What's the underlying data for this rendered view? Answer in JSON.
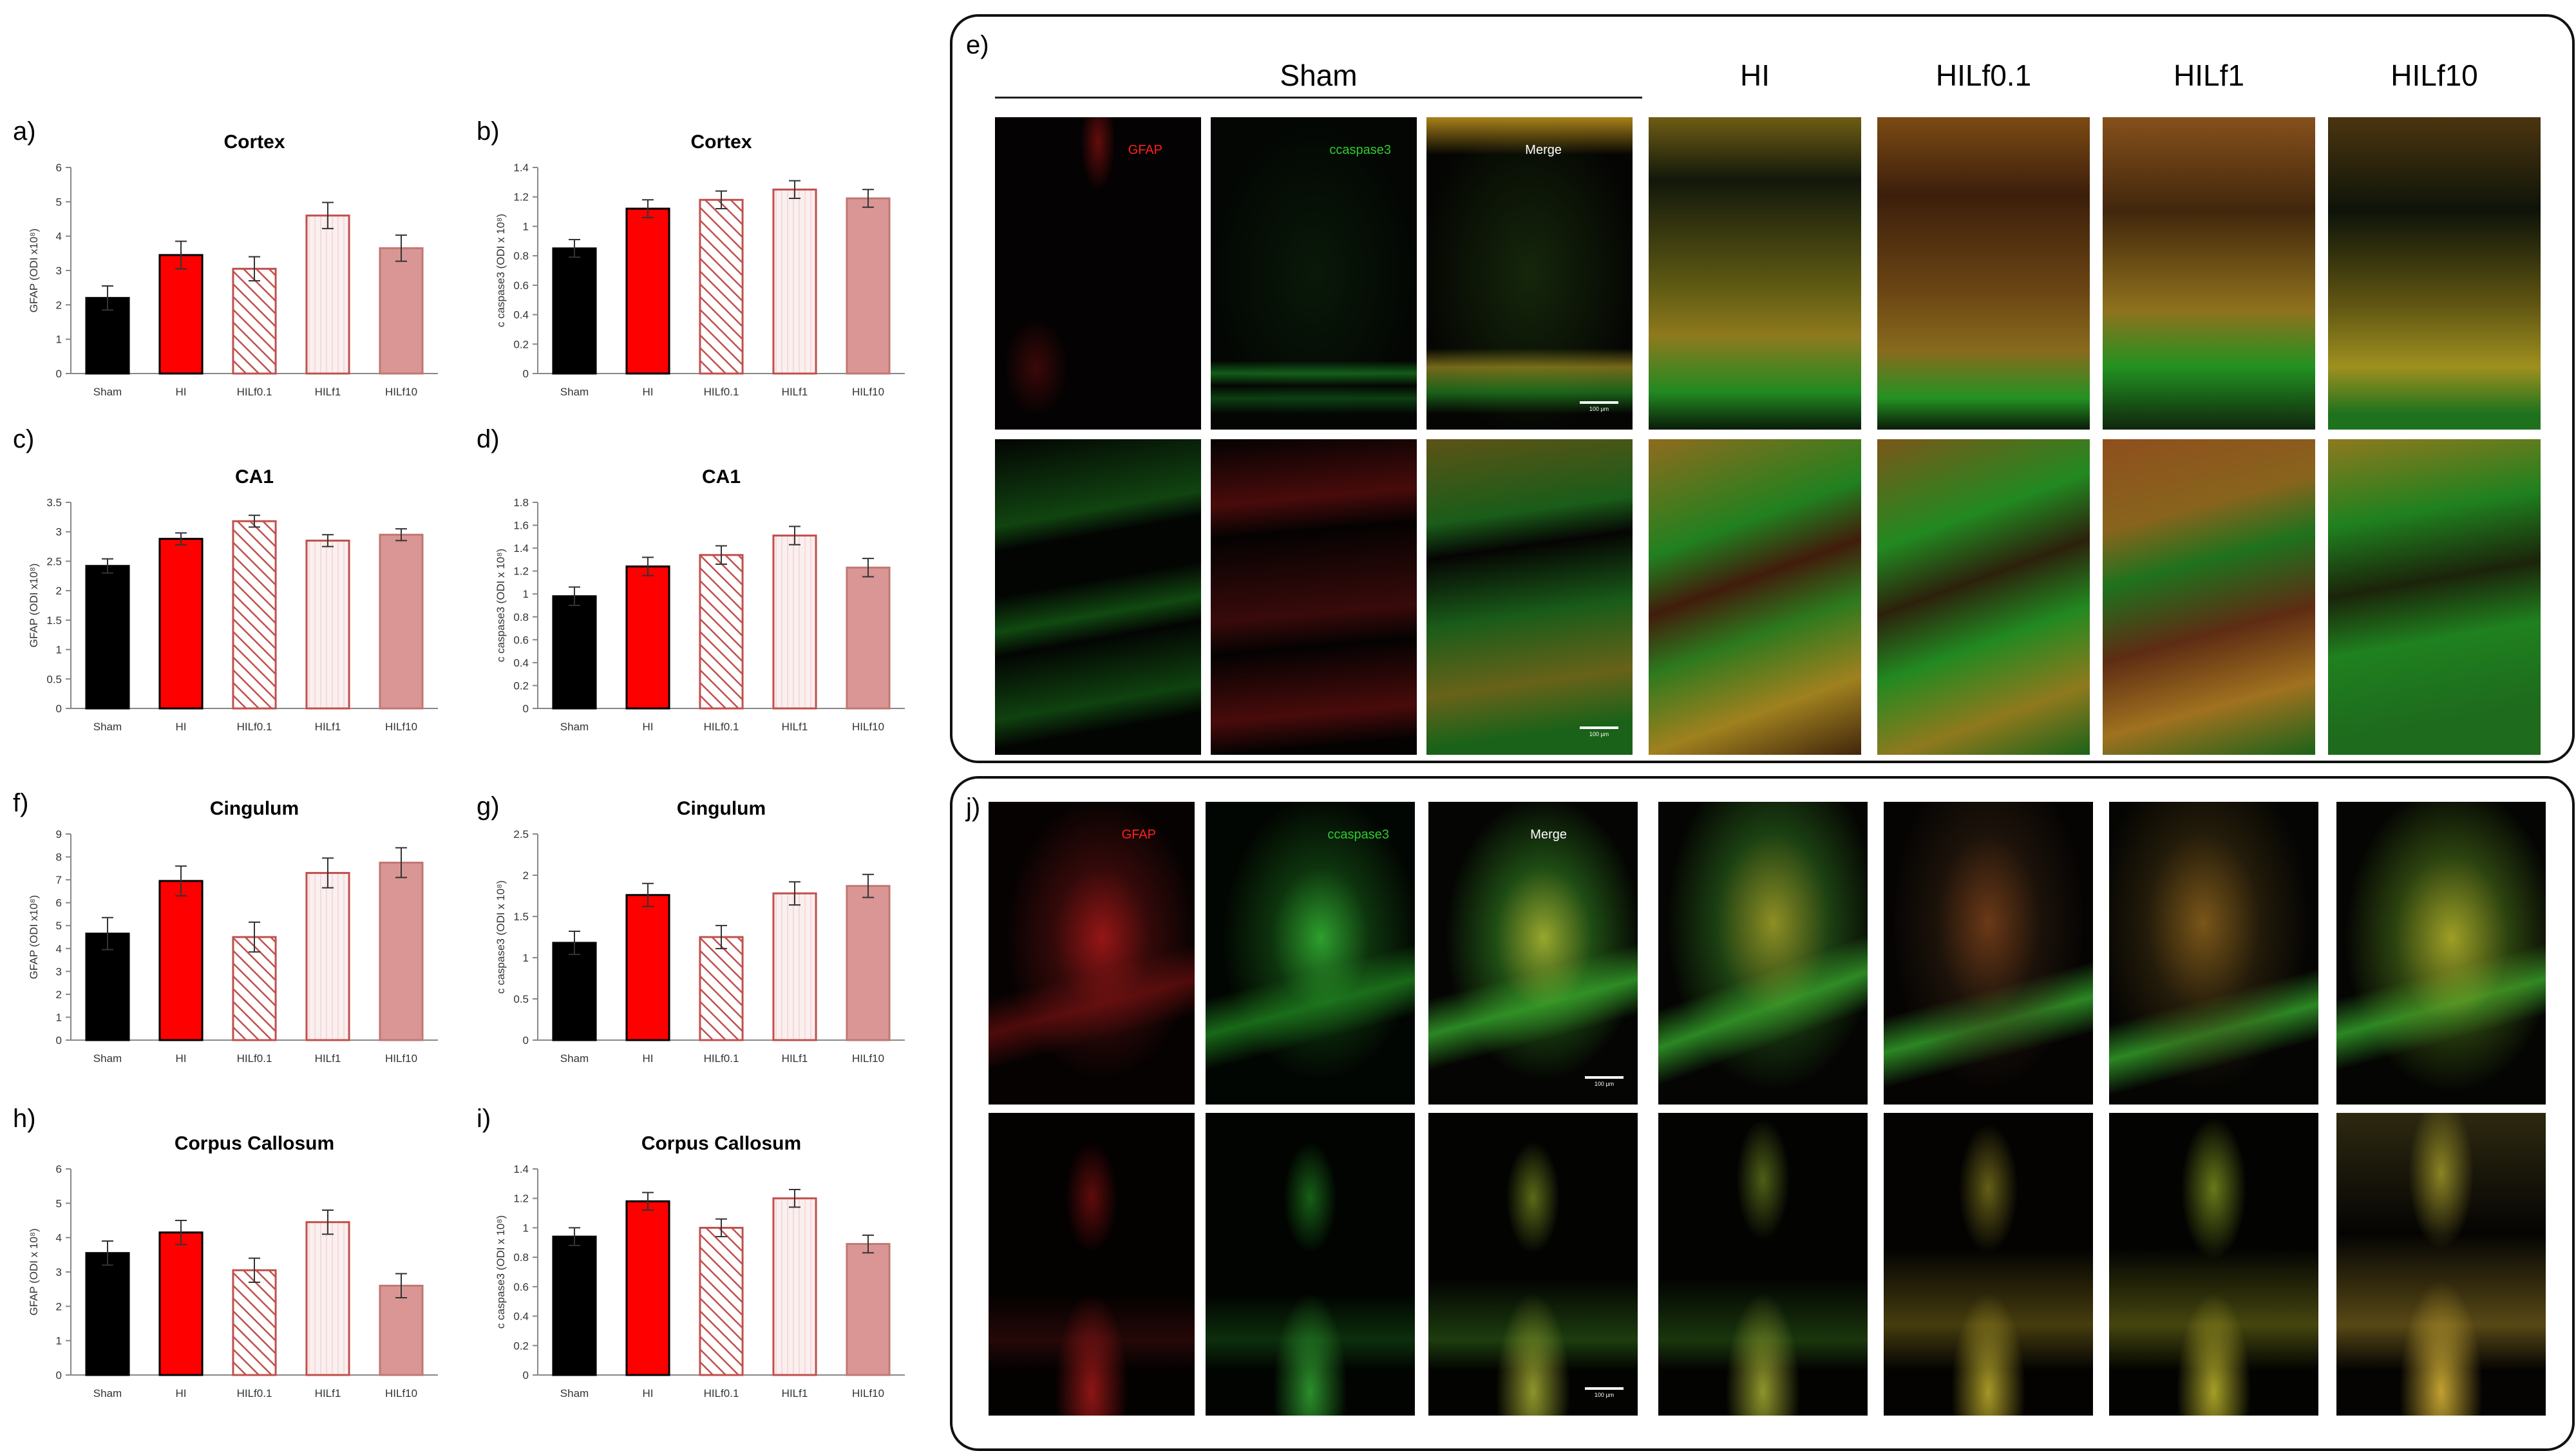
{
  "colors": {
    "Sham": "#000000",
    "HI": "#ff0000",
    "HILf0.1": "#c0504d",
    "HILf1": "#f2dcdb",
    "HILf10": "#d99694",
    "gfap_label": "#ff2020",
    "ccaspase_label": "#2ecc2e",
    "merge_label": "#ffffff"
  },
  "chart_data": [
    {
      "id": "a",
      "letter": "a)",
      "type": "bar",
      "title": "Cortex",
      "ylabel": "GFAP (ODI x10⁸)",
      "categories": [
        "Sham",
        "HI",
        "HILf0.1",
        "HILf1",
        "HILf10"
      ],
      "values": [
        2.2,
        3.45,
        3.05,
        4.6,
        3.65
      ],
      "errors": [
        0.35,
        0.4,
        0.35,
        0.38,
        0.38
      ],
      "ylim": [
        0,
        6
      ],
      "ticks": [
        "0",
        "1",
        "2",
        "3",
        "4",
        "5",
        "6"
      ]
    },
    {
      "id": "b",
      "letter": "b)",
      "type": "bar",
      "title": "Cortex",
      "ylabel": "c caspase3 (ODI x 10⁸)",
      "categories": [
        "Sham",
        "HI",
        "HILf0.1",
        "HILf1",
        "HILf10"
      ],
      "values": [
        0.85,
        1.12,
        1.18,
        1.25,
        1.19
      ],
      "errors": [
        0.06,
        0.06,
        0.06,
        0.06,
        0.06
      ],
      "ylim": [
        0,
        1.4
      ],
      "ticks": [
        "0",
        "0.2",
        "0.4",
        "0.6",
        "0.8",
        "1",
        "1.2",
        "1.4"
      ]
    },
    {
      "id": "c",
      "letter": "c)",
      "type": "bar",
      "title": "CA1",
      "ylabel": "GFAP (ODI x10⁸)",
      "categories": [
        "Sham",
        "HI",
        "HILf0.1",
        "HILf1",
        "HILf10"
      ],
      "values": [
        2.42,
        2.88,
        3.18,
        2.85,
        2.95
      ],
      "errors": [
        0.12,
        0.1,
        0.1,
        0.1,
        0.1
      ],
      "ylim": [
        0,
        3.5
      ],
      "ticks": [
        "0",
        "0.5",
        "1",
        "1.5",
        "2",
        "2.5",
        "3",
        "3.5"
      ]
    },
    {
      "id": "d",
      "letter": "d)",
      "type": "bar",
      "title": "CA1",
      "ylabel": "c caspase3 (ODI x 10⁸)",
      "categories": [
        "Sham",
        "HI",
        "HILf0.1",
        "HILf1",
        "HILf10"
      ],
      "values": [
        0.98,
        1.24,
        1.34,
        1.51,
        1.23
      ],
      "errors": [
        0.08,
        0.08,
        0.08,
        0.08,
        0.08
      ],
      "ylim": [
        0,
        1.8
      ],
      "ticks": [
        "0",
        "0.2",
        "0.4",
        "0.6",
        "0.8",
        "1",
        "1.2",
        "1.4",
        "1.6",
        "1.8"
      ]
    },
    {
      "id": "f",
      "letter": "f)",
      "type": "bar",
      "title": "Cingulum",
      "ylabel": "GFAP (ODI x10⁸)",
      "categories": [
        "Sham",
        "HI",
        "HILf0.1",
        "HILf1",
        "HILf10"
      ],
      "values": [
        4.65,
        6.95,
        4.5,
        7.3,
        7.75
      ],
      "errors": [
        0.7,
        0.65,
        0.65,
        0.65,
        0.65
      ],
      "ylim": [
        0,
        9
      ],
      "ticks": [
        "0",
        "1",
        "2",
        "3",
        "4",
        "5",
        "6",
        "7",
        "8",
        "9"
      ]
    },
    {
      "id": "g",
      "letter": "g)",
      "type": "bar",
      "title": "Cingulum",
      "ylabel": "c caspase3 (ODI x 10⁸)",
      "categories": [
        "Sham",
        "HI",
        "HILf0.1",
        "HILf1",
        "HILf10"
      ],
      "values": [
        1.18,
        1.76,
        1.25,
        1.78,
        1.87
      ],
      "errors": [
        0.14,
        0.14,
        0.14,
        0.14,
        0.14
      ],
      "ylim": [
        0,
        2.5
      ],
      "ticks": [
        "0",
        "0.5",
        "1",
        "1.5",
        "2",
        "2.5"
      ]
    },
    {
      "id": "h",
      "letter": "h)",
      "type": "bar",
      "title": "Corpus Callosum",
      "ylabel": "GFAP (ODI x 10⁸)",
      "categories": [
        "Sham",
        "HI",
        "HILf0.1",
        "HILf1",
        "HILf10"
      ],
      "values": [
        3.55,
        4.15,
        3.05,
        4.45,
        2.6
      ],
      "errors": [
        0.35,
        0.35,
        0.35,
        0.35,
        0.35
      ],
      "ylim": [
        0,
        6
      ],
      "ticks": [
        "0",
        "1",
        "2",
        "3",
        "4",
        "5",
        "6"
      ]
    },
    {
      "id": "i",
      "letter": "i)",
      "type": "bar",
      "title": "Corpus Callosum",
      "ylabel": "c caspase3 (ODI x 10⁸)",
      "categories": [
        "Sham",
        "HI",
        "HILf0.1",
        "HILf1",
        "HILf10"
      ],
      "values": [
        0.94,
        1.18,
        1.0,
        1.2,
        0.89
      ],
      "errors": [
        0.06,
        0.06,
        0.06,
        0.06,
        0.06
      ],
      "ylim": [
        0,
        1.4
      ],
      "ticks": [
        "0",
        "0.2",
        "0.4",
        "0.6",
        "0.8",
        "1",
        "1.2",
        "1.4"
      ]
    }
  ],
  "panel_e": {
    "letter": "e)",
    "sham_header": "Sham",
    "group_headers": [
      "HI",
      "HILf0.1",
      "HILf1",
      "HILf10"
    ],
    "channel_labels": {
      "gfap": "GFAP",
      "ccaspase": "ccaspase3",
      "merge": "Merge"
    },
    "scale_text": "100 µm"
  },
  "panel_j": {
    "letter": "j)",
    "channel_labels": {
      "gfap": "GFAP",
      "ccaspase": "ccaspase3",
      "merge": "Merge"
    },
    "scale_text": "100 µm"
  }
}
